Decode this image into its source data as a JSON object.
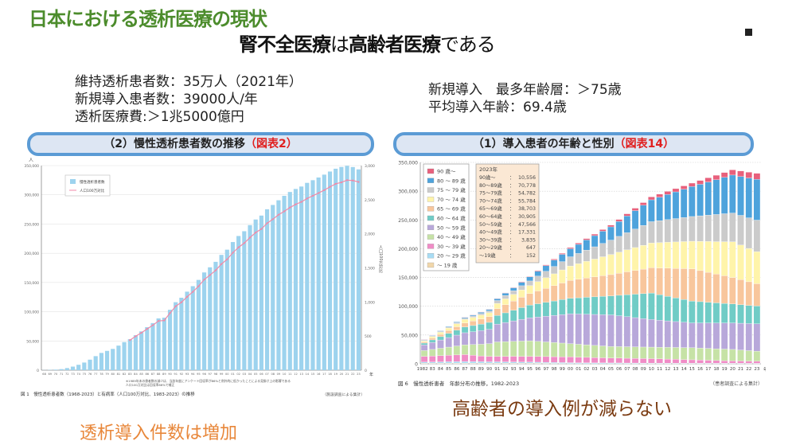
{
  "slide": {
    "title": "日本における透析医療の現状",
    "subtitle_parts": [
      {
        "text": "腎不全医療",
        "bold": true
      },
      {
        "text": "は",
        "bold": false
      },
      {
        "text": "高齢者医療",
        "bold": true
      },
      {
        "text": "である",
        "bold": false
      }
    ],
    "stats_left": [
      "維持透析患者数：35万人（2021年）",
      "新規導入患者数：39000人/年",
      "透析医療費:＞1兆5000億円"
    ],
    "stats_right": [
      "新規導入　最多年齢層：＞75歳",
      "平均導入年齢：69.4歳"
    ],
    "banner_left": {
      "text": "（2）慢性透析患者数の推移",
      "highlight": "（図表2）"
    },
    "banner_right": {
      "text": "（1）導入患者の年齢と性別",
      "highlight": "（図表14）"
    },
    "conclusion_left": "透析導入件数は増加",
    "conclusion_right": "高齢者の導入例が減らない",
    "colors": {
      "title": "#4c8c2c",
      "banner_border": "#5b9bd5",
      "banner_fill": "#dde6f3",
      "highlight": "#e02020",
      "conclusion_left": "#e8873a",
      "conclusion_right": "#7a3a10"
    }
  },
  "chart_data": [
    {
      "type": "bar+line",
      "title": "",
      "caption": "図 1　慢性透析患者数（1968-2023）と有病率（人口100万対比、1983-2023）の推移",
      "source": "（施設調査による集計）",
      "footnote": [
        "※1989年末の患者数の減少は、当該年度にアンケート回収率が86%と例外的に低かったことによる見掛け上の影響である",
        "人口100万対比は回収率86%で補正"
      ],
      "ylabel_left": "人",
      "ylabel_right": "人口100万対比",
      "xlabel": "年",
      "ylim_left": [
        0,
        350000
      ],
      "yticks_left": [
        "0",
        "50,000",
        "100,000",
        "150,000",
        "200,000",
        "250,000",
        "300,000",
        "350,000"
      ],
      "ylim_right": [
        0,
        3000
      ],
      "yticks_right": [
        "0",
        "500",
        "1,000",
        "1,500",
        "2,000",
        "2,500",
        "3,000"
      ],
      "grid": true,
      "legend_position": "top-left",
      "years": [
        1968,
        1969,
        1970,
        1971,
        1972,
        1973,
        1974,
        1975,
        1976,
        1977,
        1978,
        1979,
        1980,
        1981,
        1982,
        1983,
        1984,
        1985,
        1986,
        1987,
        1988,
        1989,
        1990,
        1991,
        1992,
        1993,
        1994,
        1995,
        1996,
        1997,
        1998,
        1999,
        2000,
        2001,
        2002,
        2003,
        2004,
        2005,
        2006,
        2007,
        2008,
        2009,
        2010,
        2011,
        2012,
        2013,
        2014,
        2015,
        2016,
        2017,
        2018,
        2019,
        2020,
        2021,
        2022,
        2023
      ],
      "series": [
        {
          "name": "慢性透析患者数",
          "color": "#9dd3ee",
          "axis": "left",
          "values": [
            215,
            500,
            949,
            1800,
            3600,
            6100,
            9200,
            13059,
            18000,
            24000,
            29500,
            33000,
            36397,
            42000,
            48000,
            53017,
            59811,
            66310,
            73537,
            80553,
            88534,
            89792,
            103296,
            116303,
            123926,
            134298,
            143709,
            154413,
            167192,
            175988,
            185322,
            197213,
            206134,
            219183,
            229538,
            237710,
            248166,
            257765,
            264473,
            275242,
            282622,
            290661,
            298252,
            304856,
            310007,
            314180,
            320448,
            324986,
            329609,
            334505,
            339841,
            344640,
            347671,
            349700,
            347474,
            343508
          ]
        },
        {
          "name": "人口100万対比",
          "color": "#f08aa8",
          "axis": "right",
          "start_year": 1983,
          "values": [
            441,
            497,
            548,
            604,
            659,
            722,
            729,
            836,
            937,
            995,
            1076,
            1149,
            1231,
            1329,
            1394,
            1464,
            1556,
            1624,
            1722,
            1801,
            1863,
            1944,
            2018,
            2070,
            2154,
            2213,
            2279,
            2329,
            2385,
            2431,
            2468,
            2517,
            2557,
            2597,
            2640,
            2688,
            2732,
            2754,
            2786,
            2781,
            2760
          ]
        }
      ]
    },
    {
      "type": "stacked-bar",
      "title": "",
      "caption": "図 6　慢性透析患者　年齢分布の推移，1982-2023",
      "source": "（患者調査による集計）",
      "xlabel": "年",
      "ylim": [
        0,
        350000
      ],
      "yticks": [
        "0",
        "50,000",
        "100,000",
        "150,000",
        "200,000",
        "250,000",
        "300,000",
        "350,000"
      ],
      "grid": true,
      "legend_position": "top-left",
      "x_labels": [
        "1982",
        "83",
        "84",
        "85",
        "86",
        "87",
        "88",
        "89",
        "90",
        "91",
        "92",
        "93",
        "94",
        "95",
        "96",
        "97",
        "98",
        "99",
        "00",
        "01",
        "02",
        "03",
        "04",
        "05",
        "06",
        "07",
        "08",
        "09",
        "10",
        "11",
        "12",
        "13",
        "14",
        "15",
        "16",
        "17",
        "18",
        "19",
        "20",
        "21",
        "22",
        "23"
      ],
      "series": [
        {
          "name": "〜 19 歳",
          "color": "#f0d6aa",
          "values": [
            1000,
            1000,
            1000,
            1000,
            1000,
            1000,
            1000,
            1000,
            1000,
            1000,
            1000,
            1000,
            1000,
            1000,
            900,
            800,
            700,
            600,
            500,
            460,
            420,
            380,
            340,
            300,
            280,
            260,
            240,
            220,
            200,
            200,
            200,
            200,
            200,
            200,
            200,
            200,
            200,
            200,
            200,
            180,
            160,
            152
          ]
        },
        {
          "name": "20 〜 29 歳",
          "color": "#a8dcf4",
          "values": [
            2000,
            2200,
            2400,
            2600,
            2800,
            3000,
            2800,
            2700,
            2500,
            2500,
            2400,
            2300,
            2100,
            2000,
            1900,
            1800,
            1700,
            1600,
            1500,
            1400,
            1400,
            1300,
            1300,
            1200,
            1200,
            1100,
            1100,
            1000,
            1000,
            1000,
            900,
            900,
            800,
            800,
            800,
            800,
            700,
            700,
            700,
            700,
            650,
            647
          ]
        },
        {
          "name": "30 〜 39 歳",
          "color": "#f08cc6",
          "values": [
            10000,
            10400,
            10800,
            11200,
            11600,
            12000,
            11000,
            10000,
            9500,
            9500,
            9600,
            9800,
            9900,
            10000,
            10000,
            10000,
            10000,
            10000,
            10000,
            9700,
            9400,
            9100,
            8800,
            8500,
            8400,
            8300,
            8100,
            7900,
            7800,
            7400,
            7100,
            6700,
            6400,
            6000,
            5600,
            5200,
            4800,
            4500,
            4100,
            4000,
            3900,
            3835
          ]
        },
        {
          "name": "40 〜 49 歳",
          "color": "#c6e2a6",
          "values": [
            10000,
            11400,
            12800,
            14200,
            15600,
            17000,
            18700,
            20300,
            22000,
            25000,
            25500,
            26000,
            26500,
            27000,
            26200,
            25400,
            24600,
            23800,
            23000,
            22400,
            21800,
            21200,
            20600,
            20000,
            20000,
            20000,
            20000,
            20000,
            20000,
            20200,
            20400,
            20600,
            20800,
            21000,
            20800,
            20600,
            20400,
            20200,
            20000,
            19100,
            18200,
            17331
          ]
        },
        {
          "name": "50 〜 59 歳",
          "color": "#b8a8da",
          "values": [
            10000,
            12200,
            14400,
            16600,
            18800,
            21000,
            22300,
            23700,
            25000,
            31000,
            33300,
            35500,
            37800,
            40000,
            42400,
            44800,
            47200,
            49600,
            52000,
            52600,
            53200,
            53800,
            54400,
            55000,
            53600,
            52200,
            50800,
            49400,
            48000,
            47000,
            46000,
            45000,
            44000,
            43000,
            43600,
            44200,
            44800,
            45400,
            46000,
            46500,
            47000,
            47566
          ]
        },
        {
          "name": "60 〜 64 歳",
          "color": "#70ccc6",
          "values": [
            3000,
            4400,
            5800,
            7200,
            8600,
            10000,
            10700,
            11300,
            12000,
            15000,
            16800,
            18500,
            20300,
            22000,
            23000,
            24000,
            25000,
            26000,
            27000,
            28200,
            29400,
            30600,
            31800,
            33000,
            35600,
            38200,
            40800,
            43400,
            46000,
            44400,
            42800,
            41200,
            39600,
            38000,
            37000,
            36000,
            35000,
            34000,
            33000,
            32300,
            31600,
            30905
          ]
        },
        {
          "name": "65 〜 69 歳",
          "color": "#f8c69c",
          "values": [
            2000,
            3000,
            4000,
            5000,
            6000,
            7000,
            8000,
            9000,
            10000,
            12000,
            14000,
            16000,
            18000,
            20000,
            22200,
            24400,
            26600,
            28800,
            31000,
            32200,
            33400,
            34600,
            35800,
            37000,
            38400,
            39800,
            41200,
            42600,
            44000,
            46400,
            48800,
            51200,
            53600,
            56000,
            54000,
            52000,
            50000,
            48000,
            46000,
            43600,
            41100,
            38703
          ]
        },
        {
          "name": "70 〜 74 歳",
          "color": "#fff4aa",
          "values": [
            2000,
            2800,
            3600,
            4400,
            5200,
            6000,
            6300,
            6700,
            7000,
            9000,
            10300,
            11500,
            12800,
            14000,
            16200,
            18400,
            20600,
            22800,
            25000,
            27000,
            29000,
            31000,
            33000,
            35000,
            36600,
            38200,
            39800,
            41400,
            43000,
            44000,
            45000,
            46000,
            47000,
            48000,
            50800,
            53600,
            56400,
            59200,
            62000,
            60000,
            57900,
            55784
          ]
        },
        {
          "name": "75 〜 79 歳",
          "color": "#cbcbcb",
          "values": [
            1000,
            1200,
            1400,
            1600,
            1800,
            2000,
            2300,
            2700,
            3000,
            5000,
            5800,
            6500,
            7300,
            8000,
            9600,
            11200,
            12800,
            14400,
            16000,
            17800,
            19600,
            21400,
            23200,
            25000,
            27400,
            29800,
            32200,
            34600,
            37000,
            38200,
            39400,
            40600,
            41800,
            43000,
            44400,
            45800,
            47200,
            48600,
            50000,
            51600,
            53200,
            54782
          ]
        },
        {
          "name": "80 〜 89 歳",
          "color": "#4ea3dc",
          "values": [
            1000,
            1100,
            1200,
            1300,
            1400,
            1500,
            1800,
            2200,
            2500,
            3000,
            4000,
            5000,
            6000,
            7000,
            8400,
            9800,
            11200,
            12600,
            14000,
            15800,
            17600,
            19400,
            21200,
            23000,
            26000,
            29000,
            32000,
            35000,
            38000,
            40800,
            43600,
            46400,
            49200,
            52000,
            54800,
            57600,
            60400,
            63200,
            66000,
            67600,
            69200,
            70778
          ]
        },
        {
          "name": "90 歳〜",
          "color": "#e8607c",
          "values": [
            500,
            500,
            500,
            500,
            500,
            500,
            500,
            500,
            500,
            500,
            600,
            700,
            900,
            1000,
            1200,
            1400,
            1600,
            1800,
            2000,
            2200,
            2400,
            2600,
            2800,
            3000,
            3400,
            3800,
            4200,
            4600,
            5000,
            5200,
            5400,
            5600,
            5800,
            6000,
            6600,
            7200,
            7800,
            8400,
            9000,
            9500,
            10000,
            10556
          ]
        }
      ],
      "annotation_table": {
        "title": "2023年",
        "rows": [
          {
            "label": "90歳〜",
            "value": "10,556"
          },
          {
            "label": "80〜89歳",
            "value": "70,778"
          },
          {
            "label": "75〜79歳",
            "value": "54,782"
          },
          {
            "label": "70〜74歳",
            "value": "55,784"
          },
          {
            "label": "65〜69歳",
            "value": "38,703"
          },
          {
            "label": "60〜64歳",
            "value": "30,905"
          },
          {
            "label": "50〜59歳",
            "value": "47,566"
          },
          {
            "label": "40〜49歳",
            "value": "17,331"
          },
          {
            "label": "30〜39歳",
            "value": "3,835"
          },
          {
            "label": "20〜29歳",
            "value": "647"
          },
          {
            "label": "〜19歳",
            "value": "152"
          }
        ]
      }
    }
  ]
}
